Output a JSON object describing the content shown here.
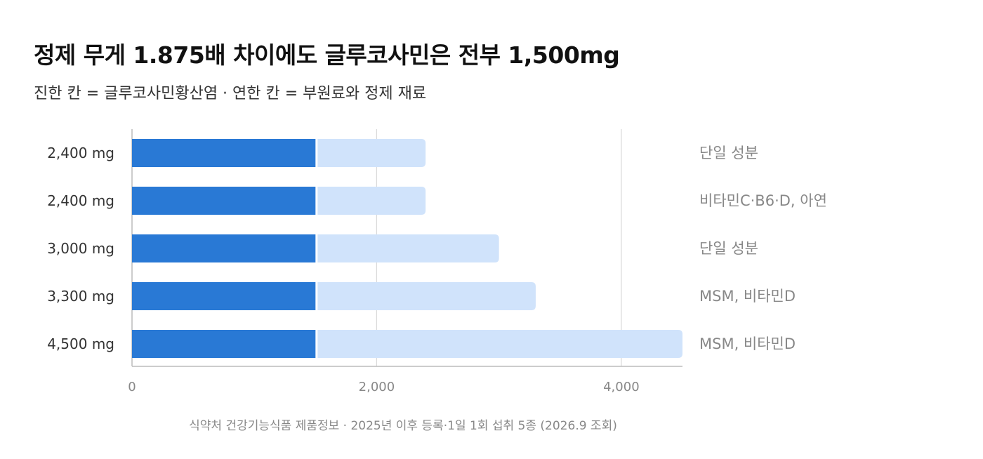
{
  "title": "정제 무게 1.875배 차이에도 글루코사민은 전부 1,500mg",
  "subtitle": "진한 칸 = 글루코사민황산염 · 연한 칸 = 부원료와 정제 재료",
  "footnote": "식약처 건강기능식품 제품정보 · 2025년 이후 등록·1일 1회 섭취 5종 (2026.9 조회)",
  "colors": {
    "glucosamine": "#2979d5",
    "other": "#d0e3fb",
    "grid": "#d9d9d9",
    "axis": "#bbbbbb"
  },
  "chart_data": {
    "type": "bar",
    "orientation": "horizontal",
    "stacked": true,
    "categories": [
      "2,400 mg",
      "2,400 mg",
      "3,000 mg",
      "3,300 mg",
      "4,500 mg"
    ],
    "totals": [
      2400,
      2400,
      3000,
      3300,
      4500
    ],
    "series": [
      {
        "values": [
          1500,
          1500,
          1500,
          1500,
          1500
        ]
      },
      {
        "values": [
          900,
          900,
          1500,
          1800,
          3000
        ]
      }
    ],
    "annotations": [
      "단일 성분",
      "비타민C·B6·D, 아연",
      "단일 성분",
      "MSM, 비타민D",
      "MSM, 비타민D"
    ],
    "xlim": [
      0,
      4500
    ],
    "xticks": [
      0,
      2000,
      4000
    ],
    "xtick_labels": [
      "0",
      "2,000",
      "4,000"
    ],
    "grid": true
  }
}
